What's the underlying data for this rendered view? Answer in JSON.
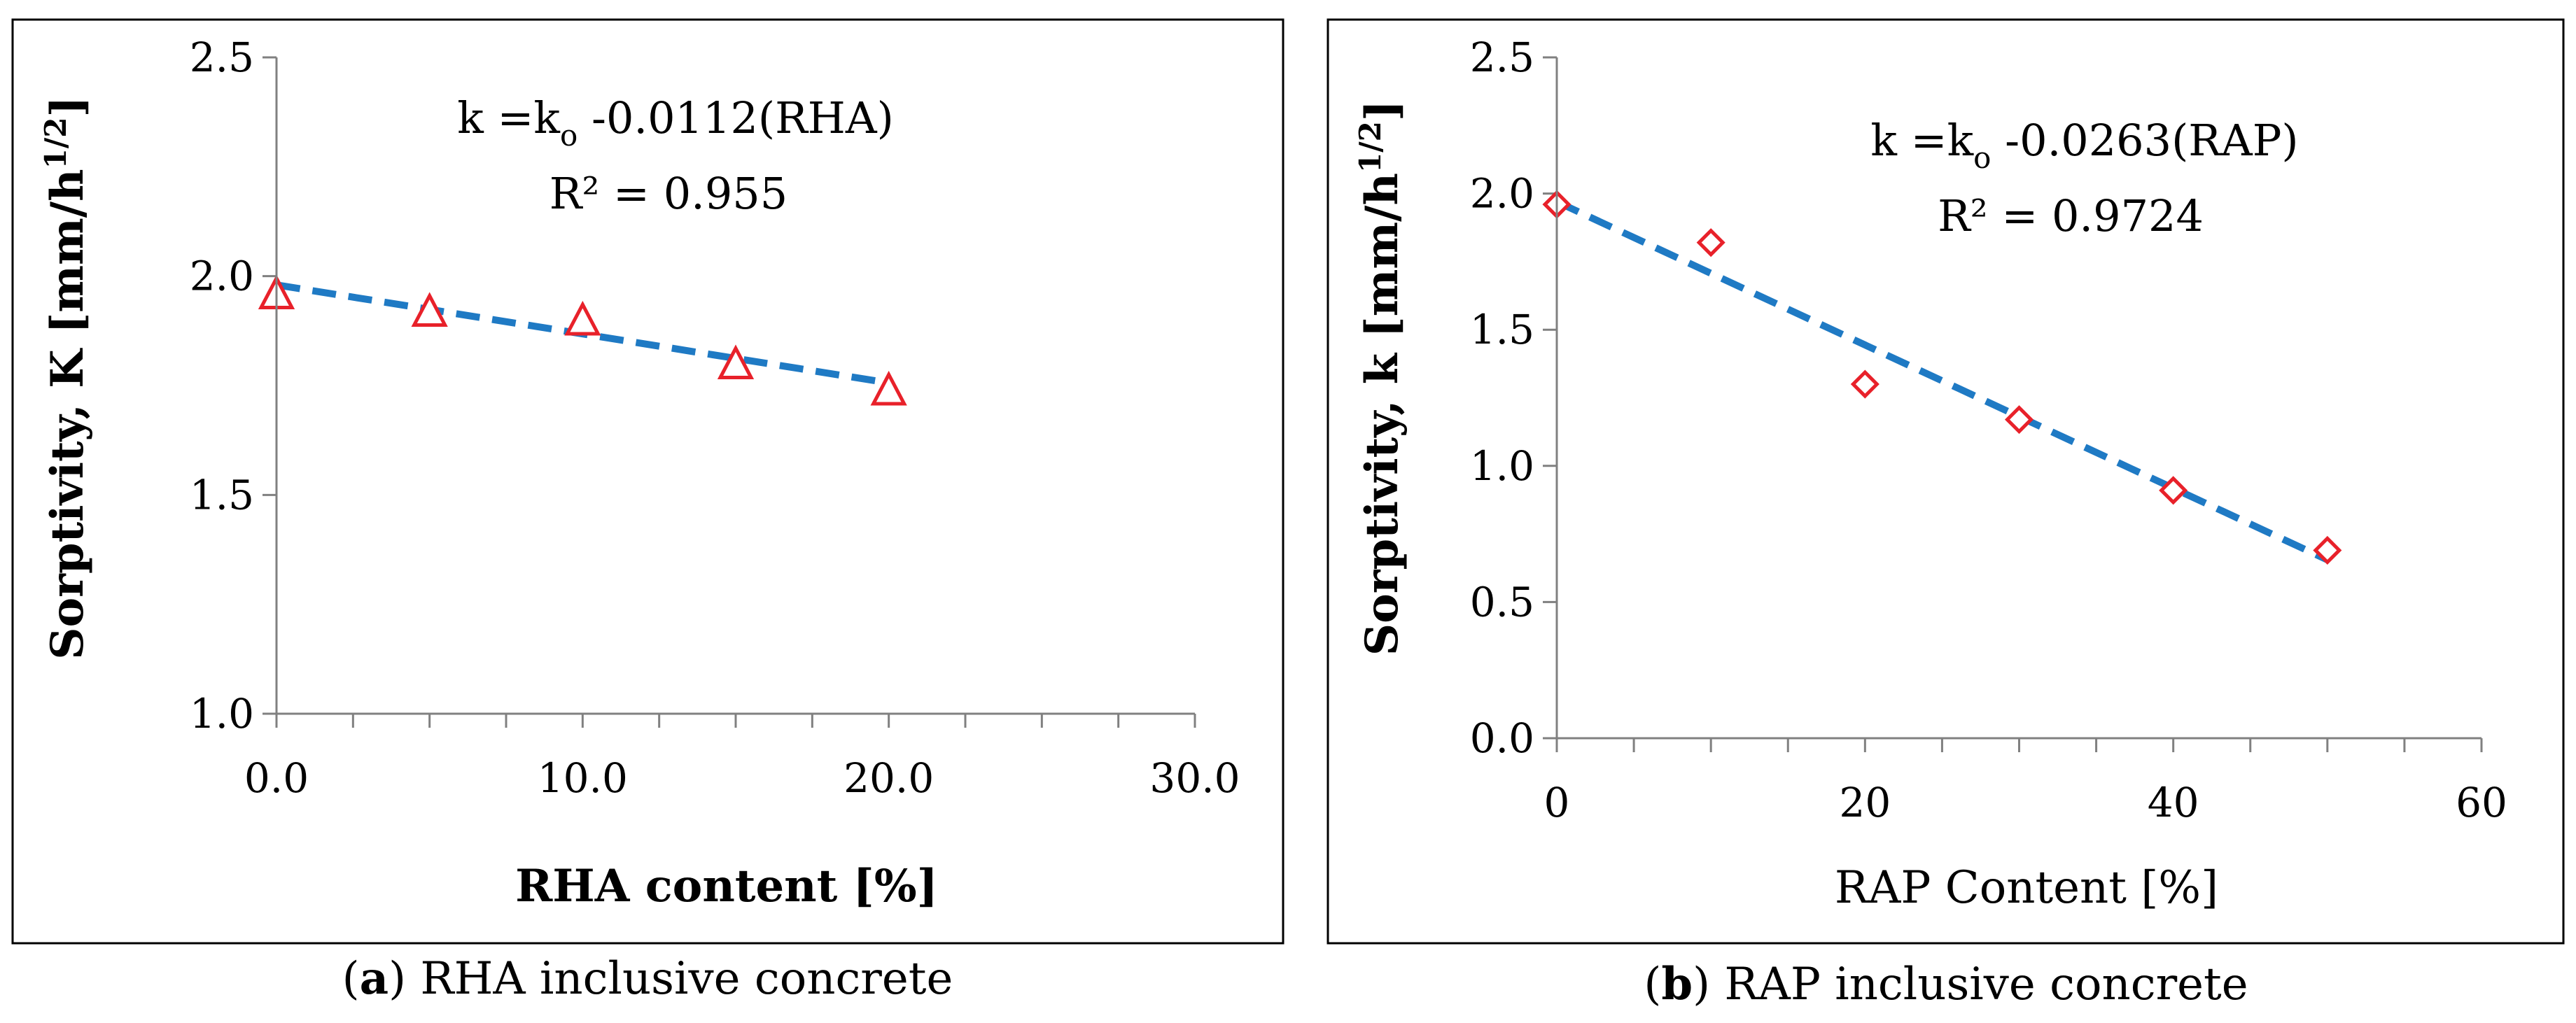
{
  "colors": {
    "marker": "#e8212a",
    "trend": "#1f7ac4",
    "axis": "#808080"
  },
  "chart_data": [
    {
      "type": "scatter",
      "marker": "triangle",
      "x": [
        0,
        5,
        10,
        15,
        20
      ],
      "y": [
        1.96,
        1.92,
        1.9,
        1.8,
        1.74
      ],
      "xlim": [
        0,
        30
      ],
      "ylim": [
        1.0,
        2.5
      ],
      "xticks": [
        0,
        10,
        20,
        30
      ],
      "xtick_labels": [
        "0.0",
        "10.0",
        "20.0",
        "30.0"
      ],
      "yticks": [
        1.0,
        1.5,
        2.0,
        2.5
      ],
      "ytick_labels": [
        "1.0",
        "1.5",
        "2.0",
        "2.5"
      ],
      "xminor_step": 2.5,
      "trendline": {
        "intercept": 1.98,
        "slope": -0.0112,
        "x_range": [
          0,
          20
        ]
      },
      "equation": {
        "pre": "k =k",
        "sub": "o",
        "post": " -0.0112(RHA)"
      },
      "r2_label": "R² = 0.955",
      "ylabel": {
        "main": "Sorptivity, K [mm/h",
        "sup": "1/2",
        "close": "]"
      },
      "xlabel": "RHA content [%]",
      "caption": {
        "tag_open": "(",
        "tag": "a",
        "tag_close": ")",
        "text": " RHA inclusive concrete"
      }
    },
    {
      "type": "scatter",
      "marker": "diamond",
      "x": [
        0,
        10,
        20,
        30,
        40,
        50
      ],
      "y": [
        1.96,
        1.82,
        1.3,
        1.17,
        0.91,
        0.69
      ],
      "xlim": [
        0,
        60
      ],
      "ylim": [
        0.0,
        2.5
      ],
      "xticks": [
        0,
        20,
        40,
        60
      ],
      "xtick_labels": [
        "0",
        "20",
        "40",
        "60"
      ],
      "yticks": [
        0.0,
        0.5,
        1.0,
        1.5,
        2.0,
        2.5
      ],
      "ytick_labels": [
        "0.0",
        "0.5",
        "1.0",
        "1.5",
        "2.0",
        "2.5"
      ],
      "xminor_step": 5,
      "trendline": {
        "intercept": 1.97,
        "slope": -0.0263,
        "x_range": [
          0,
          50
        ]
      },
      "equation": {
        "pre": "k =k",
        "sub": "o",
        "post": " -0.0263(RAP)"
      },
      "r2_label": "R² = 0.9724",
      "ylabel": {
        "main": "Sorptivity, k [mm/h",
        "sup": "1/2",
        "close": "]"
      },
      "xlabel": "RAP Content [%]",
      "caption": {
        "tag_open": "(",
        "tag": "b",
        "tag_close": ")",
        "text": " RAP inclusive concrete"
      }
    }
  ]
}
